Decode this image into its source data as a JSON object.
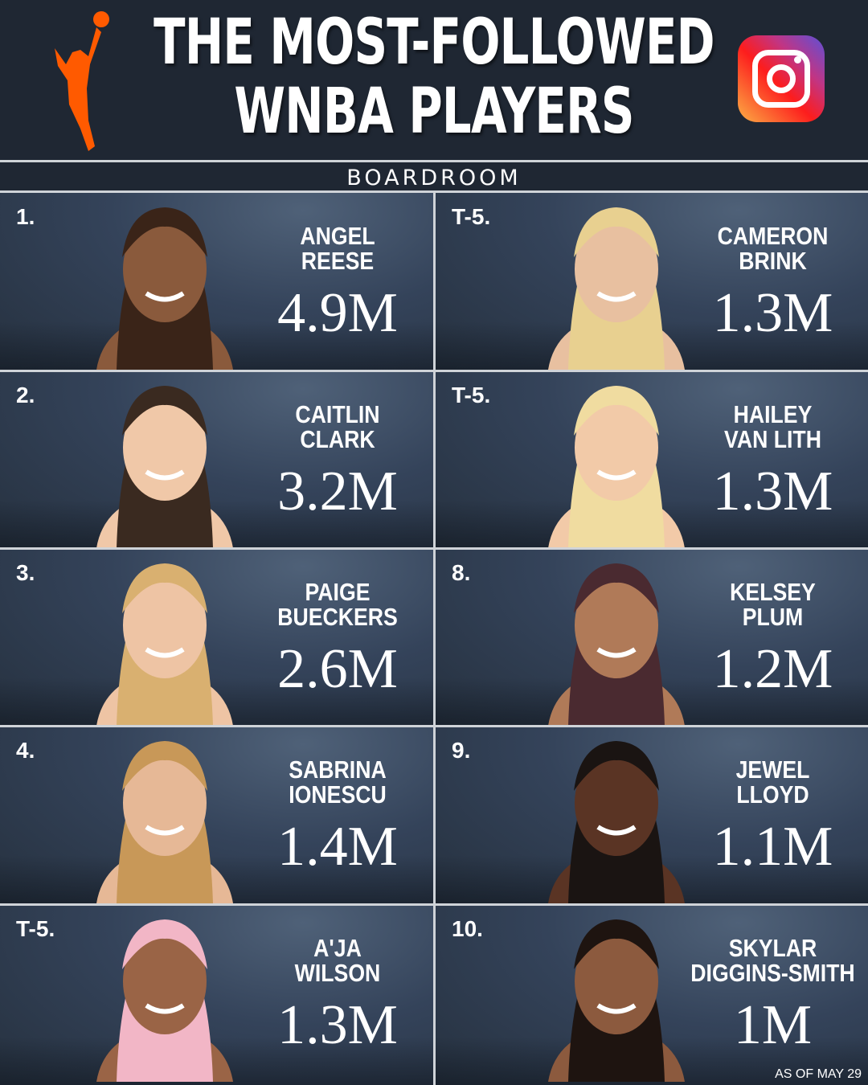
{
  "header": {
    "title_line1": "THE MOST-FOLLOWED",
    "title_line2": "WNBA PLAYERS",
    "logo": "wnba-logo",
    "platform_icon": "instagram-icon",
    "source": "BOARDROOM"
  },
  "colors": {
    "background": "#1f2733",
    "logo": "#ff5a00",
    "divider": "#cfd3d8"
  },
  "players": [
    {
      "rank": "1.",
      "name": "ANGEL REESE",
      "followers": "4.9M"
    },
    {
      "rank": "T-5.",
      "name": "CAMERON BRINK",
      "followers": "1.3M"
    },
    {
      "rank": "2.",
      "name": "CAITLIN CLARK",
      "followers": "3.2M"
    },
    {
      "rank": "T-5.",
      "name": "HAILEY VAN LITH",
      "followers": "1.3M"
    },
    {
      "rank": "3.",
      "name": "PAIGE BUECKERS",
      "followers": "2.6M"
    },
    {
      "rank": "8.",
      "name": "KELSEY PLUM",
      "followers": "1.2M"
    },
    {
      "rank": "4.",
      "name": "SABRINA IONESCU",
      "followers": "1.4M"
    },
    {
      "rank": "9.",
      "name": "JEWEL LLOYD",
      "followers": "1.1M"
    },
    {
      "rank": "T-5.",
      "name": "A'JA WILSON",
      "followers": "1.3M"
    },
    {
      "rank": "10.",
      "name": "SKYLAR DIGGINS-SMITH",
      "followers": "1M"
    }
  ],
  "footer": {
    "note": "AS OF MAY 29"
  }
}
